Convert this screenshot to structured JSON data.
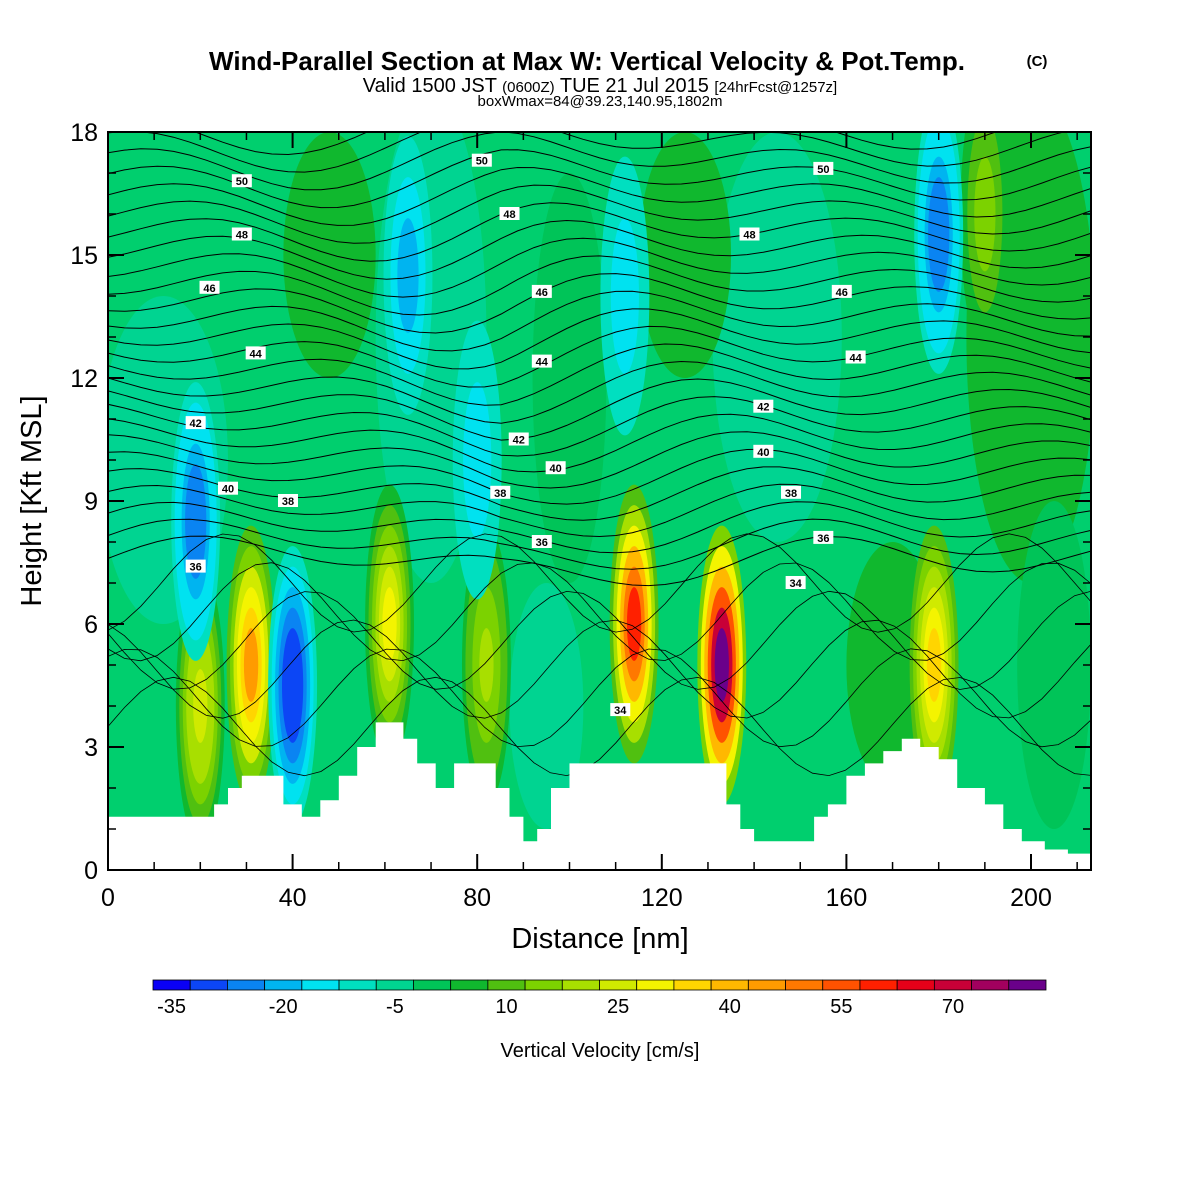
{
  "title": {
    "main": "Wind-Parallel Section at Max W: Vertical Velocity & Pot.Temp.",
    "main_mark": "(C)",
    "valid_prefix": "Valid 1500 JST",
    "valid_utc": "(0600Z)",
    "valid_date": "TUE 21 Jul 2015",
    "forecast": "[24hrFcst@1257z]",
    "boxwmax": "boxWmax=84@39.23,140.95,1802m"
  },
  "colorbar": {
    "label": "Vertical Velocity [cm/s]",
    "tick_labels": [
      "-35",
      "-20",
      "-5",
      "10",
      "25",
      "40",
      "55",
      "70"
    ],
    "colors": [
      "#0a00f5",
      "#0c46f5",
      "#0a84f2",
      "#00b4f0",
      "#00e2f0",
      "#00dfc0",
      "#00d491",
      "#00c458",
      "#10b82e",
      "#50c010",
      "#7cd200",
      "#a8df00",
      "#d0ea00",
      "#f4f400",
      "#ffd500",
      "#ffb800",
      "#ff9b00",
      "#ff7800",
      "#ff5200",
      "#ff2000",
      "#e60019",
      "#c80037",
      "#a2005e",
      "#6a008a"
    ]
  },
  "chart_data": {
    "type": "heatmap",
    "xlabel": "Distance [nm]",
    "ylabel": "Height [Kft MSL]",
    "xlim": [
      0,
      213
    ],
    "ylim": [
      0,
      18
    ],
    "x_ticks": [
      0,
      40,
      80,
      120,
      160,
      200
    ],
    "y_ticks": [
      0,
      3,
      6,
      9,
      12,
      15,
      18
    ],
    "fill_variable": "Vertical Velocity [cm/s]",
    "fill_levels": [
      -35,
      -30,
      -25,
      -20,
      -15,
      -10,
      -5,
      0,
      5,
      10,
      15,
      20,
      25,
      30,
      35,
      40,
      45,
      50,
      55,
      60,
      65,
      70,
      75,
      80
    ],
    "contour_variable": "Pot.Temp. (C)",
    "terrain_profile": [
      [
        0,
        1.3
      ],
      [
        10,
        1.3
      ],
      [
        20,
        1.3
      ],
      [
        23,
        1.6
      ],
      [
        26,
        2.0
      ],
      [
        29,
        2.3
      ],
      [
        35,
        2.3
      ],
      [
        38,
        1.6
      ],
      [
        42,
        1.3
      ],
      [
        46,
        1.7
      ],
      [
        50,
        2.3
      ],
      [
        54,
        3.0
      ],
      [
        58,
        3.6
      ],
      [
        64,
        3.2
      ],
      [
        67,
        2.6
      ],
      [
        71,
        2.0
      ],
      [
        75,
        2.6
      ],
      [
        80,
        2.6
      ],
      [
        84,
        2.0
      ],
      [
        87,
        1.3
      ],
      [
        90,
        0.7
      ],
      [
        93,
        1.0
      ],
      [
        96,
        2.0
      ],
      [
        100,
        2.6
      ],
      [
        130,
        2.6
      ],
      [
        134,
        1.6
      ],
      [
        137,
        1.0
      ],
      [
        140,
        0.7
      ],
      [
        150,
        0.7
      ],
      [
        153,
        1.3
      ],
      [
        156,
        1.6
      ],
      [
        160,
        2.3
      ],
      [
        164,
        2.6
      ],
      [
        168,
        2.9
      ],
      [
        172,
        3.2
      ],
      [
        176,
        3.0
      ],
      [
        180,
        2.7
      ],
      [
        184,
        2.0
      ],
      [
        190,
        1.6
      ],
      [
        194,
        1.0
      ],
      [
        198,
        0.7
      ],
      [
        203,
        0.5
      ],
      [
        208,
        0.4
      ],
      [
        213,
        0.4
      ]
    ],
    "updraft_cores": [
      {
        "x": 31,
        "z": 5.0,
        "w_max": 45
      },
      {
        "x": 20,
        "z": 4.0,
        "w_max": 28
      },
      {
        "x": 61,
        "z": 6.0,
        "w_max": 30
      },
      {
        "x": 82,
        "z": 5.0,
        "w_max": 22
      },
      {
        "x": 114,
        "z": 6.0,
        "w_max": 60
      },
      {
        "x": 133,
        "z": 5.0,
        "w_max": 84
      },
      {
        "x": 179,
        "z": 5.0,
        "w_max": 35
      },
      {
        "x": 190,
        "z": 16.0,
        "w_max": 18
      }
    ],
    "downdraft_cores": [
      {
        "x": 40,
        "z": 4.5,
        "w_min": -30
      },
      {
        "x": 19,
        "z": 8.5,
        "w_min": -25
      },
      {
        "x": 65,
        "z": 14.5,
        "w_min": -18
      },
      {
        "x": 80,
        "z": 10.0,
        "w_min": -15
      },
      {
        "x": 112,
        "z": 14.0,
        "w_min": -15
      },
      {
        "x": 180,
        "z": 15.5,
        "w_min": -25
      }
    ],
    "contour_labels": [
      {
        "text": "50",
        "x": 29,
        "z": 16.8
      },
      {
        "text": "48",
        "x": 29,
        "z": 15.5
      },
      {
        "text": "46",
        "x": 22,
        "z": 14.2
      },
      {
        "text": "44",
        "x": 32,
        "z": 12.6
      },
      {
        "text": "42",
        "x": 19,
        "z": 10.9
      },
      {
        "text": "40",
        "x": 26,
        "z": 9.3
      },
      {
        "text": "38",
        "x": 39,
        "z": 9.0
      },
      {
        "text": "36",
        "x": 19,
        "z": 7.4
      },
      {
        "text": "50",
        "x": 81,
        "z": 17.3
      },
      {
        "text": "48",
        "x": 87,
        "z": 16.0
      },
      {
        "text": "46",
        "x": 94,
        "z": 14.1
      },
      {
        "text": "44",
        "x": 94,
        "z": 12.4
      },
      {
        "text": "42",
        "x": 89,
        "z": 10.5
      },
      {
        "text": "40",
        "x": 97,
        "z": 9.8
      },
      {
        "text": "38",
        "x": 85,
        "z": 9.2
      },
      {
        "text": "36",
        "x": 94,
        "z": 8.0
      },
      {
        "text": "34",
        "x": 111,
        "z": 3.9
      },
      {
        "text": "34",
        "x": 149,
        "z": 7.0
      },
      {
        "text": "48",
        "x": 139,
        "z": 15.5
      },
      {
        "text": "42",
        "x": 142,
        "z": 11.3
      },
      {
        "text": "40",
        "x": 142,
        "z": 10.2
      },
      {
        "text": "38",
        "x": 148,
        "z": 9.2
      },
      {
        "text": "36",
        "x": 155,
        "z": 8.1
      },
      {
        "text": "50",
        "x": 155,
        "z": 17.1
      },
      {
        "text": "46",
        "x": 159,
        "z": 14.1
      },
      {
        "text": "44",
        "x": 162,
        "z": 12.5
      }
    ]
  }
}
